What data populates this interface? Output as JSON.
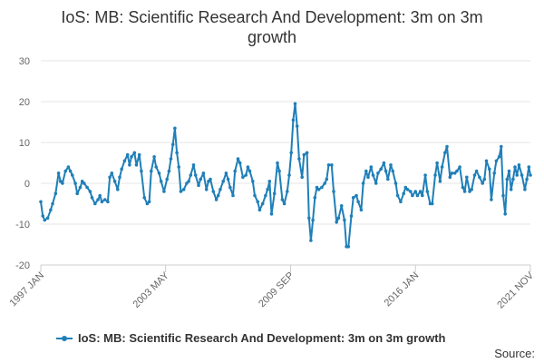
{
  "chart_data": {
    "type": "line",
    "title": "IoS: MB: Scientific Research And Development: 3m on 3m growth",
    "xlabel": "",
    "ylabel": "",
    "ylim": [
      -20,
      30
    ],
    "yticks": [
      -20,
      -10,
      0,
      10,
      20,
      30
    ],
    "xlim": [
      1997.0,
      2021.83
    ],
    "xtick_labels": [
      "1997 JAN",
      "2003 MAY",
      "2009 SEP",
      "2016 JAN",
      "2021 NOV"
    ],
    "xtick_positions": [
      1997.0,
      2003.33,
      2009.67,
      2016.0,
      2021.83
    ],
    "series": [
      {
        "name": "IoS: MB: Scientific Research And Development: 3m on 3m growth",
        "color": "#1f7fb8",
        "points": [
          [
            1997.0,
            -4.5
          ],
          [
            1997.1,
            -8.0
          ],
          [
            1997.2,
            -9.0
          ],
          [
            1997.35,
            -8.5
          ],
          [
            1997.5,
            -6.5
          ],
          [
            1997.6,
            -5.0
          ],
          [
            1997.75,
            -2.5
          ],
          [
            1997.9,
            2.5
          ],
          [
            1998.0,
            0.5
          ],
          [
            1998.1,
            0.0
          ],
          [
            1998.25,
            3.0
          ],
          [
            1998.4,
            4.0
          ],
          [
            1998.5,
            3.0
          ],
          [
            1998.6,
            2.0
          ],
          [
            1998.75,
            0.0
          ],
          [
            1998.85,
            -2.5
          ],
          [
            1999.0,
            -1.0
          ],
          [
            1999.1,
            0.5
          ],
          [
            1999.2,
            0.0
          ],
          [
            1999.35,
            -1.0
          ],
          [
            1999.5,
            -2.0
          ],
          [
            1999.6,
            -3.5
          ],
          [
            1999.75,
            -5.0
          ],
          [
            1999.9,
            -4.0
          ],
          [
            2000.0,
            -3.0
          ],
          [
            2000.1,
            -4.5
          ],
          [
            2000.25,
            -4.0
          ],
          [
            2000.4,
            -4.5
          ],
          [
            2000.5,
            1.5
          ],
          [
            2000.6,
            2.5
          ],
          [
            2000.75,
            0.5
          ],
          [
            2000.9,
            -1.5
          ],
          [
            2001.0,
            1.5
          ],
          [
            2001.1,
            3.5
          ],
          [
            2001.25,
            5.5
          ],
          [
            2001.4,
            7.0
          ],
          [
            2001.5,
            4.5
          ],
          [
            2001.6,
            6.5
          ],
          [
            2001.75,
            7.5
          ],
          [
            2001.85,
            4.5
          ],
          [
            2002.0,
            7.0
          ],
          [
            2002.1,
            3.0
          ],
          [
            2002.25,
            -3.5
          ],
          [
            2002.4,
            -5.0
          ],
          [
            2002.5,
            -4.5
          ],
          [
            2002.6,
            3.0
          ],
          [
            2002.75,
            6.5
          ],
          [
            2002.85,
            4.0
          ],
          [
            2003.0,
            2.5
          ],
          [
            2003.1,
            0.5
          ],
          [
            2003.25,
            -2.0
          ],
          [
            2003.4,
            1.0
          ],
          [
            2003.5,
            3.0
          ],
          [
            2003.6,
            6.0
          ],
          [
            2003.7,
            9.5
          ],
          [
            2003.8,
            13.5
          ],
          [
            2003.9,
            7.5
          ],
          [
            2004.0,
            4.0
          ],
          [
            2004.1,
            -2.0
          ],
          [
            2004.25,
            -1.5
          ],
          [
            2004.4,
            0.0
          ],
          [
            2004.5,
            0.5
          ],
          [
            2004.6,
            2.0
          ],
          [
            2004.75,
            4.5
          ],
          [
            2004.85,
            2.0
          ],
          [
            2005.0,
            -0.5
          ],
          [
            2005.1,
            1.0
          ],
          [
            2005.25,
            2.5
          ],
          [
            2005.4,
            -1.5
          ],
          [
            2005.5,
            0.5
          ],
          [
            2005.6,
            1.0
          ],
          [
            2005.75,
            -2.0
          ],
          [
            2005.9,
            -4.0
          ],
          [
            2006.0,
            -3.0
          ],
          [
            2006.1,
            -1.5
          ],
          [
            2006.25,
            0.5
          ],
          [
            2006.4,
            2.5
          ],
          [
            2006.5,
            1.0
          ],
          [
            2006.6,
            -1.0
          ],
          [
            2006.75,
            -3.0
          ],
          [
            2006.85,
            3.0
          ],
          [
            2007.0,
            6.0
          ],
          [
            2007.1,
            5.0
          ],
          [
            2007.25,
            1.5
          ],
          [
            2007.4,
            2.0
          ],
          [
            2007.5,
            4.0
          ],
          [
            2007.6,
            3.0
          ],
          [
            2007.75,
            0.5
          ],
          [
            2007.85,
            -3.0
          ],
          [
            2008.0,
            -4.5
          ],
          [
            2008.1,
            -6.5
          ],
          [
            2008.25,
            -5.0
          ],
          [
            2008.4,
            -3.0
          ],
          [
            2008.5,
            -1.5
          ],
          [
            2008.6,
            0.5
          ],
          [
            2008.7,
            -7.5
          ],
          [
            2008.85,
            -2.5
          ],
          [
            2009.0,
            5.0
          ],
          [
            2009.1,
            3.0
          ],
          [
            2009.25,
            -4.0
          ],
          [
            2009.35,
            -5.0
          ],
          [
            2009.5,
            -2.0
          ],
          [
            2009.6,
            2.0
          ],
          [
            2009.7,
            7.5
          ],
          [
            2009.8,
            15.5
          ],
          [
            2009.9,
            19.5
          ],
          [
            2010.0,
            14.0
          ],
          [
            2010.1,
            6.0
          ],
          [
            2010.25,
            1.5
          ],
          [
            2010.35,
            7.0
          ],
          [
            2010.5,
            7.5
          ],
          [
            2010.6,
            -8.5
          ],
          [
            2010.7,
            -14.0
          ],
          [
            2010.8,
            -9.0
          ],
          [
            2010.9,
            -3.5
          ],
          [
            2011.0,
            -1.0
          ],
          [
            2011.1,
            -1.5
          ],
          [
            2011.25,
            -1.0
          ],
          [
            2011.4,
            0.0
          ],
          [
            2011.5,
            1.0
          ],
          [
            2011.6,
            4.5
          ],
          [
            2011.75,
            4.5
          ],
          [
            2011.85,
            -2.0
          ],
          [
            2012.0,
            -9.5
          ],
          [
            2012.1,
            -8.5
          ],
          [
            2012.25,
            -5.5
          ],
          [
            2012.4,
            -9.0
          ],
          [
            2012.5,
            -15.5
          ],
          [
            2012.6,
            -15.5
          ],
          [
            2012.75,
            -8.0
          ],
          [
            2012.85,
            -3.5
          ],
          [
            2013.0,
            -3.0
          ],
          [
            2013.1,
            -4.5
          ],
          [
            2013.25,
            -6.5
          ],
          [
            2013.35,
            0.0
          ],
          [
            2013.5,
            3.0
          ],
          [
            2013.6,
            1.5
          ],
          [
            2013.75,
            4.0
          ],
          [
            2013.85,
            2.0
          ],
          [
            2014.0,
            0.0
          ],
          [
            2014.1,
            2.5
          ],
          [
            2014.25,
            3.5
          ],
          [
            2014.4,
            5.0
          ],
          [
            2014.5,
            3.0
          ],
          [
            2014.6,
            1.0
          ],
          [
            2014.75,
            4.5
          ],
          [
            2014.85,
            3.0
          ],
          [
            2015.0,
            0.0
          ],
          [
            2015.1,
            -3.0
          ],
          [
            2015.25,
            -4.5
          ],
          [
            2015.4,
            -2.5
          ],
          [
            2015.5,
            -1.0
          ],
          [
            2015.6,
            -1.5
          ],
          [
            2015.75,
            -2.0
          ],
          [
            2015.85,
            -3.0
          ],
          [
            2016.0,
            -2.0
          ],
          [
            2016.1,
            -3.0
          ],
          [
            2016.25,
            -2.0
          ],
          [
            2016.35,
            -3.0
          ],
          [
            2016.5,
            2.0
          ],
          [
            2016.6,
            -2.0
          ],
          [
            2016.75,
            -5.0
          ],
          [
            2016.85,
            -5.0
          ],
          [
            2017.0,
            2.0
          ],
          [
            2017.1,
            5.0
          ],
          [
            2017.25,
            0.5
          ],
          [
            2017.35,
            4.0
          ],
          [
            2017.5,
            7.5
          ],
          [
            2017.6,
            9.0
          ],
          [
            2017.75,
            1.5
          ],
          [
            2017.85,
            2.5
          ],
          [
            2018.0,
            2.5
          ],
          [
            2018.1,
            3.0
          ],
          [
            2018.25,
            4.0
          ],
          [
            2018.4,
            -1.0
          ],
          [
            2018.5,
            -2.0
          ],
          [
            2018.6,
            1.5
          ],
          [
            2018.75,
            -2.0
          ],
          [
            2018.85,
            -1.5
          ],
          [
            2019.0,
            2.0
          ],
          [
            2019.1,
            3.0
          ],
          [
            2019.25,
            1.5
          ],
          [
            2019.4,
            0.0
          ],
          [
            2019.5,
            1.0
          ],
          [
            2019.6,
            5.5
          ],
          [
            2019.75,
            3.5
          ],
          [
            2019.85,
            -4.0
          ],
          [
            2020.0,
            2.5
          ],
          [
            2020.1,
            5.5
          ],
          [
            2020.25,
            6.5
          ],
          [
            2020.35,
            9.0
          ],
          [
            2020.45,
            -3.0
          ],
          [
            2020.55,
            -7.5
          ],
          [
            2020.65,
            1.0
          ],
          [
            2020.75,
            3.0
          ],
          [
            2020.85,
            -1.5
          ],
          [
            2020.95,
            1.0
          ],
          [
            2021.05,
            4.0
          ],
          [
            2021.15,
            2.0
          ],
          [
            2021.25,
            4.5
          ],
          [
            2021.4,
            2.0
          ],
          [
            2021.55,
            -1.5
          ],
          [
            2021.65,
            1.0
          ],
          [
            2021.75,
            4.0
          ],
          [
            2021.83,
            2.0
          ]
        ]
      }
    ]
  },
  "legend": {
    "label": "IoS: MB: Scientific Research And Development: 3m on 3m growth"
  },
  "source": {
    "label": "Source:"
  }
}
